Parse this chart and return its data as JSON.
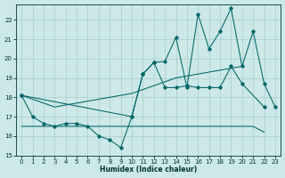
{
  "xlabel": "Humidex (Indice chaleur)",
  "bg_color": "#cce8e8",
  "grid_color": "#aacccc",
  "line_color": "#006666",
  "font_color": "#003333",
  "xlim": [
    -0.5,
    23.5
  ],
  "ylim": [
    15.0,
    22.8
  ],
  "yticks": [
    15,
    16,
    17,
    18,
    19,
    20,
    21,
    22
  ],
  "xticks": [
    0,
    1,
    2,
    3,
    4,
    5,
    6,
    7,
    8,
    9,
    10,
    11,
    12,
    13,
    14,
    15,
    16,
    17,
    18,
    19,
    20,
    21,
    22,
    23
  ],
  "s1_x": [
    0,
    1,
    2,
    3,
    4,
    5,
    6,
    7,
    8,
    9,
    10,
    11,
    12,
    13,
    14,
    15,
    16,
    17,
    18,
    19,
    20,
    22
  ],
  "s1_y": [
    18.1,
    17.0,
    16.65,
    16.5,
    16.65,
    16.65,
    16.5,
    16.0,
    15.8,
    15.4,
    17.0,
    19.2,
    19.8,
    18.5,
    18.5,
    18.6,
    18.5,
    18.5,
    18.5,
    19.6,
    18.7,
    17.5
  ],
  "s2_x": [
    0,
    1,
    2,
    3,
    4,
    5,
    6,
    7,
    8,
    9,
    10,
    11,
    12,
    13,
    14,
    15,
    16,
    17,
    18,
    19,
    20,
    21,
    22
  ],
  "s2_y": [
    16.5,
    16.5,
    16.5,
    16.5,
    16.5,
    16.5,
    16.5,
    16.5,
    16.5,
    16.5,
    16.5,
    16.5,
    16.5,
    16.5,
    16.5,
    16.5,
    16.5,
    16.5,
    16.5,
    16.5,
    16.5,
    16.5,
    16.2
  ],
  "s3_x": [
    0,
    3,
    6,
    9,
    10,
    11,
    12,
    13,
    14,
    15,
    16,
    17,
    18,
    19,
    20
  ],
  "s3_y": [
    18.1,
    17.5,
    17.8,
    18.1,
    18.2,
    18.4,
    18.6,
    18.8,
    19.0,
    19.1,
    19.2,
    19.3,
    19.4,
    19.5,
    19.6
  ],
  "s4_x": [
    0,
    10,
    11,
    12,
    13,
    14,
    15,
    16,
    17,
    18,
    19,
    20,
    21,
    22,
    23
  ],
  "s4_y": [
    18.1,
    17.0,
    19.2,
    19.8,
    19.85,
    21.1,
    18.5,
    22.3,
    20.5,
    21.4,
    22.6,
    19.6,
    21.4,
    18.7,
    17.5
  ]
}
